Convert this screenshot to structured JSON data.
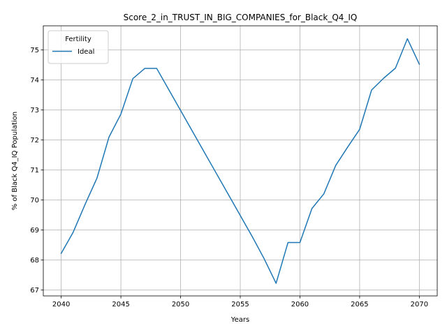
{
  "chart_data": {
    "type": "line",
    "title": "Score_2_in_TRUST_IN_BIG_COMPANIES_for_Black_Q4_IQ",
    "xlabel": "Years",
    "ylabel": "% of Black Q4_IQ Population",
    "xlim": [
      2038.5,
      2071.5
    ],
    "ylim": [
      66.8,
      75.8
    ],
    "xticks": [
      2040,
      2045,
      2050,
      2055,
      2060,
      2065,
      2070
    ],
    "yticks": [
      67,
      68,
      69,
      70,
      71,
      72,
      73,
      74,
      75
    ],
    "grid": true,
    "legend": {
      "title": "Fertility",
      "placement": "top-left"
    },
    "series": [
      {
        "name": "Ideal",
        "color": "#1f77b4",
        "x": [
          2040,
          2041,
          2042,
          2043,
          2044,
          2045,
          2046,
          2047,
          2048,
          2049,
          2050,
          2051,
          2052,
          2053,
          2054,
          2055,
          2056,
          2057,
          2058,
          2059,
          2060,
          2061,
          2062,
          2063,
          2064,
          2065,
          2066,
          2067,
          2068,
          2069,
          2070
        ],
        "y": [
          68.22,
          68.92,
          69.85,
          70.73,
          72.09,
          72.86,
          74.04,
          74.38,
          74.38,
          73.68,
          72.98,
          72.28,
          71.58,
          70.88,
          70.18,
          69.48,
          68.78,
          68.04,
          67.22,
          68.58,
          68.58,
          69.71,
          70.2,
          71.15,
          71.76,
          72.35,
          73.66,
          74.05,
          74.39,
          75.37,
          74.52
        ]
      }
    ]
  }
}
